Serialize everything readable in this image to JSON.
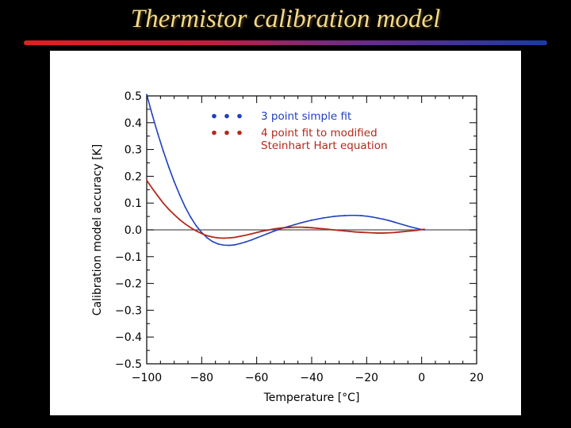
{
  "slide": {
    "title": "Thermistor calibration model"
  },
  "colors": {
    "title": "#f3d98a",
    "background": "#000000",
    "plot_background": "#ffffff",
    "series_blue": "#1f3fbf",
    "series_red": "#b22a1a",
    "zero_line": "#555555"
  },
  "chart_data": {
    "type": "line",
    "title": "",
    "xlabel": "Temperature [°C]",
    "ylabel": "Calibration model accuracy [K]",
    "xlim": [
      -100,
      20
    ],
    "ylim": [
      -0.5,
      0.5
    ],
    "xticks": [
      -100,
      -80,
      -60,
      -40,
      -20,
      0,
      20
    ],
    "xtick_labels": [
      "−100",
      "−80",
      "−60",
      "−40",
      "−20",
      "0",
      "20"
    ],
    "yticks": [
      0.5,
      0.4,
      0.3,
      0.2,
      0.1,
      0.0,
      -0.1,
      -0.2,
      -0.3,
      -0.4,
      -0.5
    ],
    "ytick_labels": [
      "0.5",
      "0.4",
      "0.3",
      "0.2",
      "0.1",
      "0.0",
      "−0.1",
      "−0.2",
      "−0.3",
      "−0.4",
      "−0.5"
    ],
    "reference_line_y": 0,
    "grid": false,
    "legend_position": "top-center",
    "series": [
      {
        "name": "3 point simple fit",
        "legend_lines": [
          "3 point simple fit"
        ],
        "color": "#1f3fbf",
        "x": [
          -100,
          -98,
          -96,
          -94,
          -92,
          -90,
          -88,
          -86,
          -84,
          -82,
          -80,
          -78,
          -76,
          -74,
          -72,
          -70,
          -68,
          -66,
          -64,
          -62,
          -60,
          -58,
          -56,
          -54,
          -52,
          -50,
          -48,
          -46,
          -44,
          -42,
          -40,
          -38,
          -36,
          -34,
          -32,
          -30,
          -28,
          -26,
          -24,
          -22,
          -20,
          -18,
          -16,
          -14,
          -12,
          -10,
          -8,
          -6,
          -4,
          -2,
          0,
          1
        ],
        "y": [
          0.505,
          0.43,
          0.36,
          0.295,
          0.235,
          0.18,
          0.13,
          0.085,
          0.047,
          0.015,
          -0.01,
          -0.03,
          -0.044,
          -0.053,
          -0.057,
          -0.058,
          -0.056,
          -0.051,
          -0.045,
          -0.038,
          -0.03,
          -0.022,
          -0.014,
          -0.006,
          0.001,
          0.008,
          0.014,
          0.02,
          0.026,
          0.031,
          0.036,
          0.04,
          0.044,
          0.047,
          0.05,
          0.052,
          0.053,
          0.054,
          0.054,
          0.053,
          0.051,
          0.048,
          0.044,
          0.04,
          0.035,
          0.029,
          0.023,
          0.017,
          0.011,
          0.006,
          0.001,
          0.0
        ]
      },
      {
        "name": "4 point fit to modified Steinhart Hart equation",
        "legend_lines": [
          "4 point fit to modified",
          "Steinhart Hart equation"
        ],
        "color": "#b22a1a",
        "x": [
          -100,
          -98,
          -96,
          -94,
          -92,
          -90,
          -88,
          -86,
          -84,
          -82,
          -80,
          -78,
          -76,
          -74,
          -72,
          -70,
          -68,
          -66,
          -64,
          -62,
          -60,
          -58,
          -56,
          -54,
          -52,
          -50,
          -48,
          -46,
          -44,
          -42,
          -40,
          -38,
          -36,
          -34,
          -32,
          -30,
          -28,
          -26,
          -24,
          -22,
          -20,
          -18,
          -16,
          -14,
          -12,
          -10,
          -8,
          -6,
          -4,
          -2,
          0,
          1
        ],
        "y": [
          0.185,
          0.155,
          0.127,
          0.1,
          0.077,
          0.057,
          0.038,
          0.022,
          0.008,
          -0.004,
          -0.014,
          -0.022,
          -0.027,
          -0.03,
          -0.031,
          -0.03,
          -0.028,
          -0.024,
          -0.02,
          -0.015,
          -0.01,
          -0.005,
          -0.001,
          0.003,
          0.006,
          0.008,
          0.009,
          0.01,
          0.01,
          0.009,
          0.008,
          0.006,
          0.004,
          0.002,
          0.0,
          -0.002,
          -0.004,
          -0.006,
          -0.008,
          -0.009,
          -0.01,
          -0.011,
          -0.012,
          -0.012,
          -0.011,
          -0.01,
          -0.008,
          -0.006,
          -0.004,
          -0.002,
          0.001,
          0.002
        ]
      }
    ]
  }
}
